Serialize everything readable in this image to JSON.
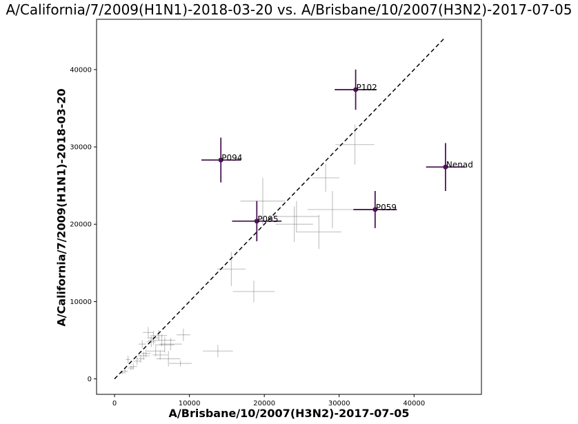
{
  "chart_data": {
    "type": "scatter",
    "title": "A/California/7/2009(H1N1)-2018-03-20 vs. A/Brisbane/10/2007(H3N2)-2017-07-05",
    "xlabel": "A/Brisbane/10/2007(H3N2)-2017-07-05",
    "ylabel": "A/California/7/2009(H1N1)-2018-03-20",
    "xlim": [
      -2400,
      49000
    ],
    "ylim": [
      -2000,
      46500
    ],
    "xticks": [
      0,
      10000,
      20000,
      30000,
      40000
    ],
    "yticks": [
      0,
      10000,
      20000,
      30000,
      40000
    ],
    "diagonal": {
      "from": [
        0,
        0
      ],
      "to": [
        44200,
        44200
      ],
      "style": "dashed",
      "color": "#000000"
    },
    "highlight_color": "#4b1456",
    "background_color": "#555555",
    "highlighted": [
      {
        "label": "P102",
        "x": 32200,
        "y": 37400,
        "xerr": 2800,
        "yerr": 2600
      },
      {
        "label": "P094",
        "x": 14200,
        "y": 28300,
        "xerr": 2600,
        "yerr": 2900
      },
      {
        "label": "Nenad",
        "x": 44200,
        "y": 27400,
        "xerr": 2600,
        "yerr": 3100
      },
      {
        "label": "P059",
        "x": 34800,
        "y": 21900,
        "xerr": 2900,
        "yerr": 2400
      },
      {
        "label": "P095",
        "x": 19000,
        "y": 20400,
        "xerr": 3300,
        "yerr": 2600
      }
    ],
    "background_points": [
      {
        "x": 32100,
        "y": 30300,
        "xerr": 2600,
        "yerr": 2600
      },
      {
        "x": 28200,
        "y": 26000,
        "xerr": 1800,
        "yerr": 1800
      },
      {
        "x": 19800,
        "y": 23000,
        "xerr": 3000,
        "yerr": 3000
      },
      {
        "x": 24300,
        "y": 21000,
        "xerr": 3000,
        "yerr": 2000
      },
      {
        "x": 29100,
        "y": 21900,
        "xerr": 3300,
        "yerr": 2400
      },
      {
        "x": 24000,
        "y": 20000,
        "xerr": 2500,
        "yerr": 2300
      },
      {
        "x": 27300,
        "y": 19000,
        "xerr": 3000,
        "yerr": 2200
      },
      {
        "x": 15600,
        "y": 14200,
        "xerr": 1900,
        "yerr": 2200
      },
      {
        "x": 18600,
        "y": 11300,
        "xerr": 2800,
        "yerr": 1400
      },
      {
        "x": 13800,
        "y": 3600,
        "xerr": 2000,
        "yerr": 800
      },
      {
        "x": 9200,
        "y": 5700,
        "xerr": 900,
        "yerr": 800
      },
      {
        "x": 8800,
        "y": 2000,
        "xerr": 1500,
        "yerr": 400
      },
      {
        "x": 7500,
        "y": 4500,
        "xerr": 1500,
        "yerr": 800
      },
      {
        "x": 7200,
        "y": 2600,
        "xerr": 1600,
        "yerr": 1000
      },
      {
        "x": 6300,
        "y": 5000,
        "xerr": 1800,
        "yerr": 800
      },
      {
        "x": 6700,
        "y": 4400,
        "xerr": 1300,
        "yerr": 1000
      },
      {
        "x": 5900,
        "y": 5600,
        "xerr": 1100,
        "yerr": 700
      },
      {
        "x": 5200,
        "y": 5300,
        "xerr": 800,
        "yerr": 900
      },
      {
        "x": 4900,
        "y": 4800,
        "xerr": 600,
        "yerr": 700
      },
      {
        "x": 4500,
        "y": 6000,
        "xerr": 700,
        "yerr": 700
      },
      {
        "x": 3700,
        "y": 4500,
        "xerr": 500,
        "yerr": 500
      },
      {
        "x": 3900,
        "y": 3000,
        "xerr": 800,
        "yerr": 500
      },
      {
        "x": 3500,
        "y": 2600,
        "xerr": 500,
        "yerr": 500
      },
      {
        "x": 3000,
        "y": 2300,
        "xerr": 500,
        "yerr": 500
      },
      {
        "x": 2500,
        "y": 1600,
        "xerr": 500,
        "yerr": 400
      },
      {
        "x": 2200,
        "y": 1400,
        "xerr": 400,
        "yerr": 300
      },
      {
        "x": 1800,
        "y": 2500,
        "xerr": 300,
        "yerr": 500
      },
      {
        "x": 1400,
        "y": 1000,
        "xerr": 400,
        "yerr": 300
      },
      {
        "x": 1000,
        "y": 800,
        "xerr": 300,
        "yerr": 200
      },
      {
        "x": 5500,
        "y": 3600,
        "xerr": 1200,
        "yerr": 700
      },
      {
        "x": 6100,
        "y": 3100,
        "xerr": 1000,
        "yerr": 600
      },
      {
        "x": 4200,
        "y": 3300,
        "xerr": 600,
        "yerr": 500
      }
    ]
  }
}
